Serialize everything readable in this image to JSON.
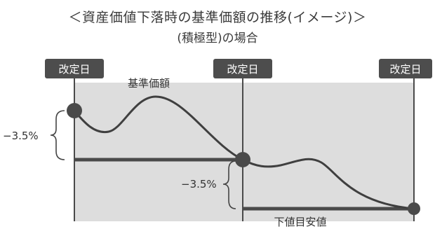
{
  "title": "＜資産価値下落時の基準価額の推移(イメージ)＞",
  "subtitle": "(積極型)の場合",
  "revision_label": "改定日",
  "nav_label": "基準価額",
  "floor_label": "下値目安値",
  "drop_label": "−3.5%",
  "colors": {
    "shade": "#dddddd",
    "line": "#4a4a4a",
    "tag_bg": "#4d4d4d",
    "tag_text": "#ffffff"
  }
}
